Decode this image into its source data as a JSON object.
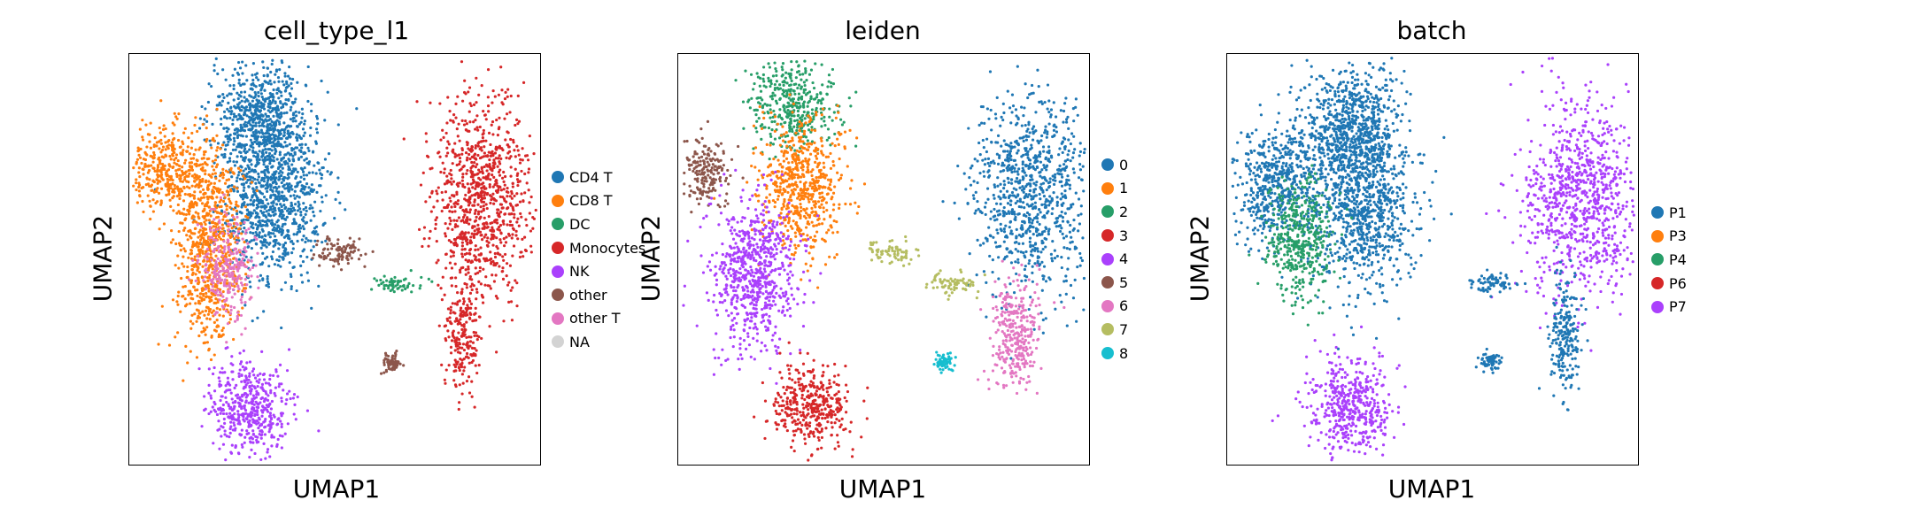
{
  "chart_data": [
    {
      "type": "scatter",
      "title": "cell_type_l1",
      "xlabel": "UMAP1",
      "ylabel": "UMAP2",
      "legend_placement": "right",
      "categories": [
        {
          "name": "CD4 T",
          "color": "#1f77b4"
        },
        {
          "name": "CD8 T",
          "color": "#ff7f0e"
        },
        {
          "name": "DC",
          "color": "#279e68"
        },
        {
          "name": "Monocytes",
          "color": "#d62728"
        },
        {
          "name": "NK",
          "color": "#aa40fc"
        },
        {
          "name": "other",
          "color": "#8c564b"
        },
        {
          "name": "other T",
          "color": "#e377c2"
        },
        {
          "name": "NA",
          "color": "#d3d3d3"
        }
      ],
      "clusters": [
        {
          "category": "CD4 T",
          "x": 0.32,
          "y": 0.84,
          "sx": 0.06,
          "sy": 0.07
        },
        {
          "category": "CD4 T",
          "x": 0.35,
          "y": 0.65,
          "sx": 0.06,
          "sy": 0.1
        },
        {
          "category": "CD8 T",
          "x": 0.1,
          "y": 0.72,
          "sx": 0.05,
          "sy": 0.05
        },
        {
          "category": "CD8 T",
          "x": 0.19,
          "y": 0.52,
          "sx": 0.04,
          "sy": 0.12
        },
        {
          "category": "other T",
          "x": 0.24,
          "y": 0.48,
          "sx": 0.03,
          "sy": 0.06
        },
        {
          "category": "NK",
          "x": 0.29,
          "y": 0.14,
          "sx": 0.05,
          "sy": 0.06
        },
        {
          "category": "Monocytes",
          "x": 0.86,
          "y": 0.65,
          "sx": 0.06,
          "sy": 0.12
        },
        {
          "category": "Monocytes",
          "x": 0.81,
          "y": 0.32,
          "sx": 0.02,
          "sy": 0.07
        },
        {
          "category": "DC",
          "x": 0.65,
          "y": 0.44,
          "sx": 0.03,
          "sy": 0.01
        },
        {
          "category": "other",
          "x": 0.64,
          "y": 0.25,
          "sx": 0.012,
          "sy": 0.012
        },
        {
          "category": "other",
          "x": 0.51,
          "y": 0.52,
          "sx": 0.03,
          "sy": 0.02
        }
      ]
    },
    {
      "type": "scatter",
      "title": "leiden",
      "xlabel": "UMAP1",
      "ylabel": "UMAP2",
      "legend_placement": "right",
      "categories": [
        {
          "name": "0",
          "color": "#1f77b4"
        },
        {
          "name": "1",
          "color": "#ff7f0e"
        },
        {
          "name": "2",
          "color": "#279e68"
        },
        {
          "name": "3",
          "color": "#d62728"
        },
        {
          "name": "4",
          "color": "#aa40fc"
        },
        {
          "name": "5",
          "color": "#8c564b"
        },
        {
          "name": "6",
          "color": "#e377c2"
        },
        {
          "name": "7",
          "color": "#b5bd61"
        },
        {
          "name": "8",
          "color": "#17becf"
        }
      ],
      "clusters": [
        {
          "category": "2",
          "x": 0.28,
          "y": 0.87,
          "sx": 0.05,
          "sy": 0.05
        },
        {
          "category": "1",
          "x": 0.3,
          "y": 0.68,
          "sx": 0.05,
          "sy": 0.08
        },
        {
          "category": "5",
          "x": 0.07,
          "y": 0.71,
          "sx": 0.03,
          "sy": 0.04
        },
        {
          "category": "4",
          "x": 0.18,
          "y": 0.47,
          "sx": 0.05,
          "sy": 0.09
        },
        {
          "category": "3",
          "x": 0.32,
          "y": 0.14,
          "sx": 0.05,
          "sy": 0.05
        },
        {
          "category": "0",
          "x": 0.86,
          "y": 0.65,
          "sx": 0.07,
          "sy": 0.12
        },
        {
          "category": "6",
          "x": 0.82,
          "y": 0.32,
          "sx": 0.03,
          "sy": 0.07
        },
        {
          "category": "7",
          "x": 0.67,
          "y": 0.44,
          "sx": 0.03,
          "sy": 0.015
        },
        {
          "category": "7",
          "x": 0.52,
          "y": 0.52,
          "sx": 0.03,
          "sy": 0.015
        },
        {
          "category": "8",
          "x": 0.65,
          "y": 0.25,
          "sx": 0.012,
          "sy": 0.012
        }
      ]
    },
    {
      "type": "scatter",
      "title": "batch",
      "xlabel": "UMAP1",
      "ylabel": "UMAP2",
      "legend_placement": "right",
      "categories": [
        {
          "name": "P1",
          "color": "#1f77b4"
        },
        {
          "name": "P3",
          "color": "#ff7f0e"
        },
        {
          "name": "P4",
          "color": "#279e68"
        },
        {
          "name": "P6",
          "color": "#d62728"
        },
        {
          "name": "P7",
          "color": "#aa40fc"
        }
      ],
      "clusters": [
        {
          "category": "P1",
          "x": 0.3,
          "y": 0.82,
          "sx": 0.06,
          "sy": 0.08
        },
        {
          "category": "P1",
          "x": 0.33,
          "y": 0.63,
          "sx": 0.06,
          "sy": 0.1
        },
        {
          "category": "P1",
          "x": 0.12,
          "y": 0.68,
          "sx": 0.05,
          "sy": 0.07
        },
        {
          "category": "P4",
          "x": 0.18,
          "y": 0.55,
          "sx": 0.04,
          "sy": 0.07
        },
        {
          "category": "P7",
          "x": 0.3,
          "y": 0.14,
          "sx": 0.05,
          "sy": 0.06
        },
        {
          "category": "P7",
          "x": 0.86,
          "y": 0.65,
          "sx": 0.07,
          "sy": 0.12
        },
        {
          "category": "P1",
          "x": 0.82,
          "y": 0.32,
          "sx": 0.02,
          "sy": 0.07
        },
        {
          "category": "P1",
          "x": 0.65,
          "y": 0.44,
          "sx": 0.03,
          "sy": 0.015
        },
        {
          "category": "P1",
          "x": 0.64,
          "y": 0.25,
          "sx": 0.012,
          "sy": 0.012
        }
      ]
    }
  ]
}
